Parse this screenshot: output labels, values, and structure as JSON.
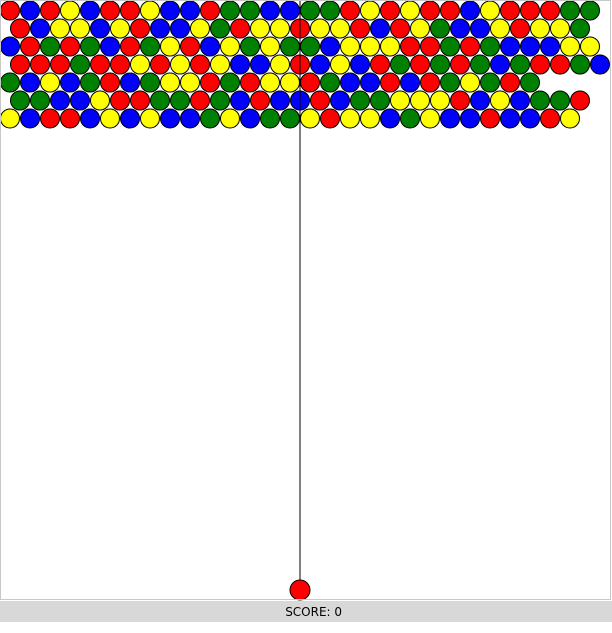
{
  "status_bar": {
    "score_label": "SCORE:",
    "score_value": 0
  },
  "colors": {
    "R": "#ff0000",
    "G": "#008000",
    "B": "#0000ff",
    "Y": "#ffff00",
    "outline": "#000000",
    "aim_line": "#000000",
    "background": "#ffffff",
    "status_bg": "#d8d8d8"
  },
  "grid": {
    "row_count": 7,
    "rows": [
      "RBRYBRRYBBRGGBBGGRYRYRRBYRRRGG",
      "RBYYBYRBBYGRYYRYYRBRYGBBYRYYG",
      "BRGRGBRGYRBYGYGGBYYYRRGRGBBBYY",
      "RRRGRRYRYRYBBYRBYBRGRGRGBGRRGB",
      "GBYBGRBGYYRGRYYRGBBRBRGYGRG",
      "GGBBYRRGGRGBRBBRBGGYYYRBYBGGR",
      "YBRRBYBYBBGYBGGYRYYBGYBBRBBRY"
    ]
  },
  "shooter": {
    "current_ball": "R",
    "aim": "straight-up"
  }
}
